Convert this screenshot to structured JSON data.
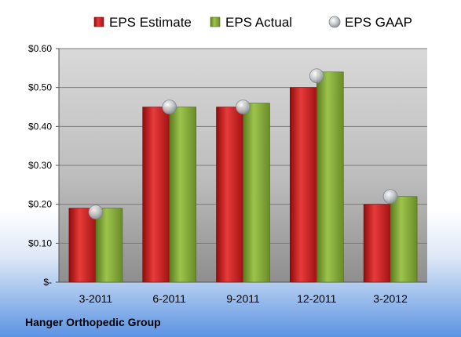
{
  "chart_data": {
    "type": "bar",
    "categories": [
      "3-2011",
      "6-2011",
      "9-2011",
      "12-2011",
      "3-2012"
    ],
    "series": [
      {
        "name": "EPS Estimate",
        "kind": "bar",
        "color": "#d42a2a",
        "values": [
          0.19,
          0.45,
          0.45,
          0.5,
          0.2
        ]
      },
      {
        "name": "EPS Actual",
        "kind": "bar",
        "color": "#86ad3a",
        "values": [
          0.19,
          0.45,
          0.46,
          0.54,
          0.22
        ]
      },
      {
        "name": "EPS GAAP",
        "kind": "marker",
        "color": "#b8bec6",
        "values": [
          0.18,
          0.45,
          0.45,
          0.53,
          0.22
        ]
      }
    ],
    "ylim": [
      0,
      0.6
    ],
    "yticks": [
      0,
      0.1,
      0.2,
      0.3,
      0.4,
      0.5,
      0.6
    ],
    "ytick_labels": [
      "$-",
      "$0.10",
      "$0.20",
      "$0.30",
      "$0.40",
      "$0.50",
      "$0.60"
    ],
    "grid": true,
    "legend_position": "top"
  },
  "footer": {
    "company": "Hanger Orthopedic Group"
  }
}
